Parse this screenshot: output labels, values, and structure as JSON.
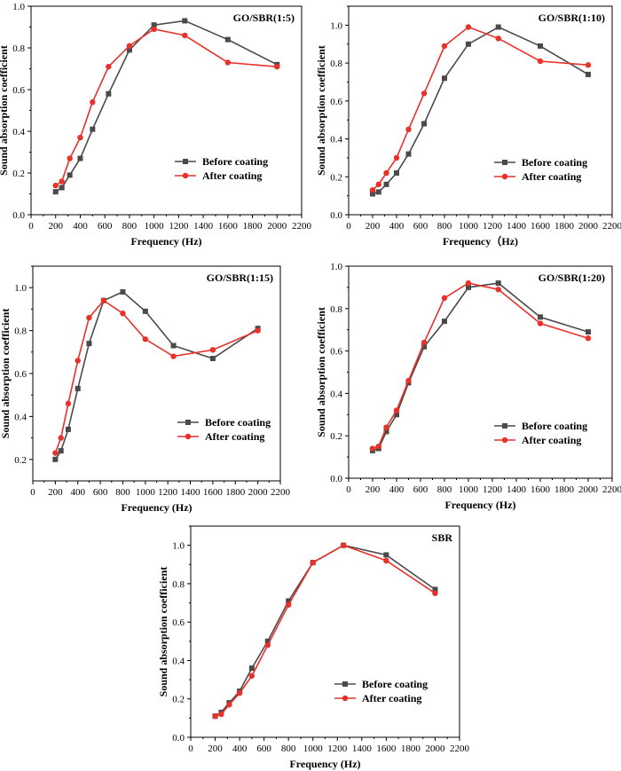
{
  "colors": {
    "before": "#4a4a4a",
    "after": "#e8312a",
    "axis": "#000000"
  },
  "chart_data": [
    {
      "type": "line",
      "title": "GO/SBR(1:5)",
      "xlabel": "Frequency (Hz)",
      "ylabel": "Sound absorption coefficient",
      "xlim": [
        0,
        2200
      ],
      "ylim": [
        0,
        1.0
      ],
      "xticks": [
        0,
        200,
        400,
        600,
        800,
        1000,
        1200,
        1400,
        1600,
        1800,
        2000,
        2200
      ],
      "xtick_labels": [
        "0",
        "200",
        "400",
        "600",
        "800",
        "1000",
        "1200",
        "1400",
        "1600",
        "1800",
        "2000",
        "2200"
      ],
      "yticks": [
        0,
        0.2,
        0.4,
        0.6,
        0.8,
        1.0
      ],
      "ytick_labels": [
        "0.0",
        "0.2",
        "0.4",
        "0.6",
        "0.8",
        "1.0"
      ],
      "x": [
        200,
        250,
        315,
        400,
        500,
        630,
        800,
        1000,
        1250,
        1600,
        2000
      ],
      "series": [
        {
          "name": "Before coating",
          "marker": "square",
          "values": [
            0.11,
            0.13,
            0.19,
            0.27,
            0.41,
            0.58,
            0.79,
            0.91,
            0.93,
            0.84,
            0.72
          ]
        },
        {
          "name": "After coating",
          "marker": "circle",
          "values": [
            0.14,
            0.16,
            0.27,
            0.37,
            0.54,
            0.71,
            0.81,
            0.89,
            0.86,
            0.73,
            0.71
          ]
        }
      ]
    },
    {
      "type": "line",
      "title": "GO/SBR(1:10)",
      "xlabel": "Frequency（Hz)",
      "ylabel": "Sound absorption coefficient",
      "xlim": [
        0,
        2200
      ],
      "ylim": [
        0,
        1.1
      ],
      "xticks": [
        0,
        200,
        400,
        600,
        800,
        1000,
        1200,
        1400,
        1600,
        1800,
        2000,
        2200
      ],
      "xtick_labels": [
        "0",
        "200",
        "400",
        "600",
        "800",
        "1000",
        "1200",
        "1400",
        "1600",
        "1800",
        "2000",
        "2200"
      ],
      "yticks": [
        0,
        0.2,
        0.4,
        0.6,
        0.8,
        1.0
      ],
      "ytick_labels": [
        "0.0",
        "0.2",
        "0.4",
        "0.6",
        "0.8",
        "1.0"
      ],
      "x": [
        200,
        250,
        315,
        400,
        500,
        630,
        800,
        1000,
        1250,
        1600,
        2000
      ],
      "series": [
        {
          "name": "Before coating",
          "marker": "square",
          "values": [
            0.11,
            0.12,
            0.16,
            0.22,
            0.32,
            0.48,
            0.72,
            0.9,
            0.99,
            0.89,
            0.74
          ]
        },
        {
          "name": "After coating",
          "marker": "circle",
          "values": [
            0.13,
            0.16,
            0.22,
            0.3,
            0.45,
            0.64,
            0.89,
            0.99,
            0.93,
            0.81,
            0.79
          ]
        }
      ]
    },
    {
      "type": "line",
      "title": "GO/SBR(1:15)",
      "xlabel": "Frequency (Hz)",
      "ylabel": "Sound absorption coefficient",
      "xlim": [
        0,
        2200
      ],
      "ylim": [
        0.1,
        1.1
      ],
      "xticks": [
        0,
        200,
        400,
        600,
        800,
        1000,
        1200,
        1400,
        1600,
        1800,
        2000,
        2200
      ],
      "xtick_labels": [
        "0",
        "200",
        "400",
        "600",
        "800",
        "1000",
        "1200",
        "1400",
        "1600",
        "1800",
        "2000",
        "2200"
      ],
      "yticks": [
        0.2,
        0.4,
        0.6,
        0.8,
        1.0
      ],
      "ytick_labels": [
        "0.2",
        "0.4",
        "0.6",
        "0.8",
        "1.0"
      ],
      "x": [
        200,
        250,
        315,
        400,
        500,
        630,
        800,
        1000,
        1250,
        1600,
        2000
      ],
      "series": [
        {
          "name": "Before coating",
          "marker": "square",
          "values": [
            0.2,
            0.24,
            0.34,
            0.53,
            0.74,
            0.94,
            0.98,
            0.89,
            0.73,
            0.67,
            0.81
          ]
        },
        {
          "name": "After coating",
          "marker": "circle",
          "values": [
            0.23,
            0.3,
            0.46,
            0.66,
            0.86,
            0.94,
            0.88,
            0.76,
            0.68,
            0.71,
            0.8
          ]
        }
      ]
    },
    {
      "type": "line",
      "title": "GO/SBR(1:20)",
      "xlabel": "Frequency (Hz)",
      "ylabel": "Sound absorption coefficient",
      "xlim": [
        0,
        2200
      ],
      "ylim": [
        0,
        1.0
      ],
      "xticks": [
        0,
        200,
        400,
        600,
        800,
        1000,
        1200,
        1400,
        1600,
        1800,
        2000,
        2200
      ],
      "xtick_labels": [
        "0",
        "200",
        "400",
        "600",
        "800",
        "1000",
        "1200",
        "1400",
        "1600",
        "1800",
        "2000",
        "2200"
      ],
      "yticks": [
        0,
        0.2,
        0.4,
        0.6,
        0.8,
        1.0
      ],
      "ytick_labels": [
        "0.0",
        "0.2",
        "0.4",
        "0.6",
        "0.8",
        "1.0"
      ],
      "x": [
        200,
        250,
        315,
        400,
        500,
        630,
        800,
        1000,
        1250,
        1600,
        2000
      ],
      "series": [
        {
          "name": "Before coating",
          "marker": "square",
          "values": [
            0.13,
            0.14,
            0.22,
            0.3,
            0.45,
            0.62,
            0.74,
            0.9,
            0.92,
            0.76,
            0.69
          ]
        },
        {
          "name": "After coating",
          "marker": "circle",
          "values": [
            0.14,
            0.15,
            0.24,
            0.32,
            0.46,
            0.64,
            0.85,
            0.92,
            0.89,
            0.73,
            0.66
          ]
        }
      ]
    },
    {
      "type": "line",
      "title": "SBR",
      "xlabel": "Frequency (Hz)",
      "ylabel": "Sound absorption coefficient",
      "xlim": [
        0,
        2200
      ],
      "ylim": [
        0,
        1.1
      ],
      "xticks": [
        0,
        200,
        400,
        600,
        800,
        1000,
        1200,
        1400,
        1600,
        1800,
        2000,
        2200
      ],
      "xtick_labels": [
        "0",
        "200",
        "400",
        "600",
        "800",
        "1000",
        "1200",
        "1400",
        "1600",
        "1800",
        "2000",
        "2200"
      ],
      "yticks": [
        0,
        0.2,
        0.4,
        0.6,
        0.8,
        1.0
      ],
      "ytick_labels": [
        "0.0",
        "0.2",
        "0.4",
        "0.6",
        "0.8",
        "1.0"
      ],
      "x": [
        200,
        250,
        315,
        400,
        500,
        630,
        800,
        1000,
        1250,
        1600,
        2000
      ],
      "series": [
        {
          "name": "Before coating",
          "marker": "square",
          "values": [
            0.11,
            0.13,
            0.18,
            0.24,
            0.36,
            0.5,
            0.71,
            0.91,
            1.0,
            0.95,
            0.77
          ]
        },
        {
          "name": "After coating",
          "marker": "circle",
          "values": [
            0.11,
            0.12,
            0.17,
            0.23,
            0.32,
            0.48,
            0.69,
            0.91,
            1.0,
            0.92,
            0.75
          ]
        }
      ]
    }
  ]
}
